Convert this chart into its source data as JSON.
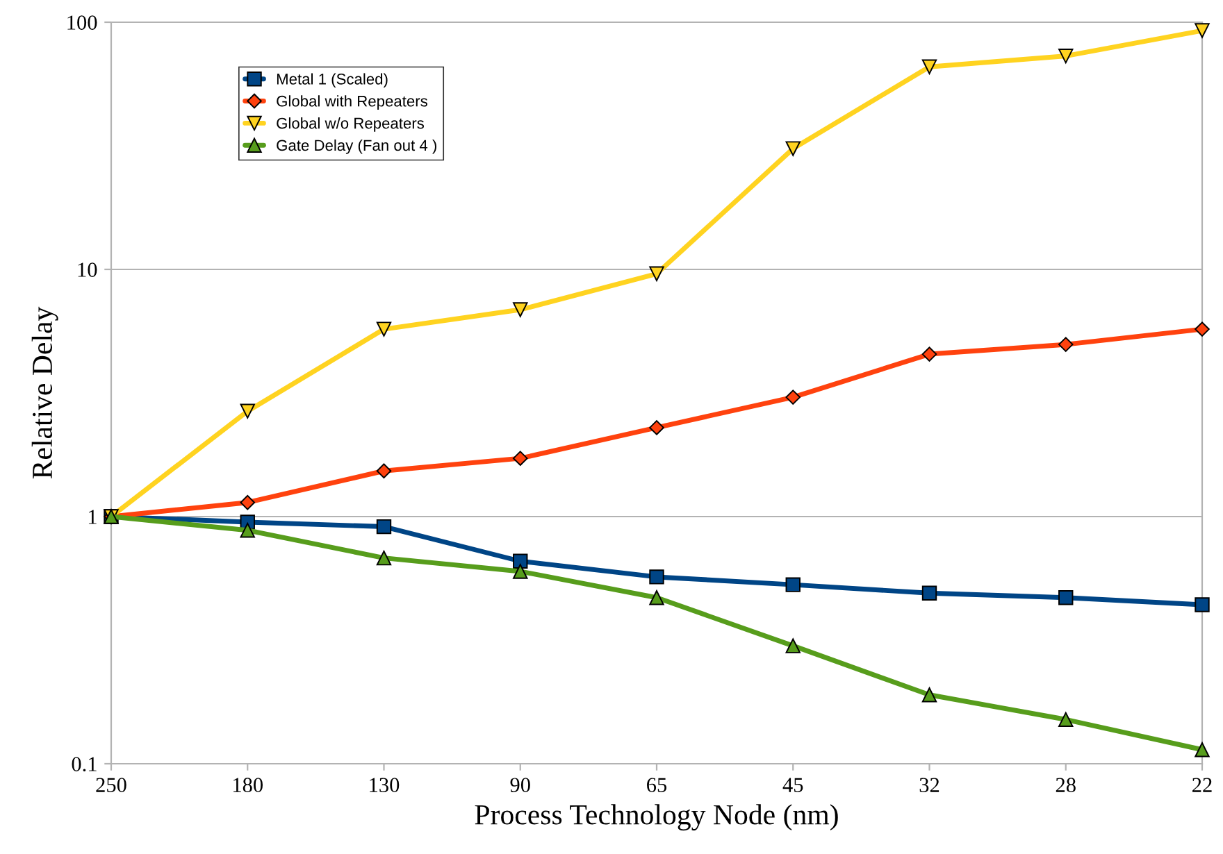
{
  "chart_data": {
    "type": "line",
    "xlabel": "Process Technology Node (nm)",
    "ylabel": "Relative Delay",
    "categories": [
      "250",
      "180",
      "130",
      "90",
      "65",
      "45",
      "32",
      "28",
      "22"
    ],
    "series": [
      {
        "name": "Metal 1 (Scaled)",
        "color": "#004586",
        "marker": "square",
        "values": [
          1,
          0.95,
          0.91,
          0.66,
          0.57,
          0.53,
          0.49,
          0.47,
          0.44
        ]
      },
      {
        "name": "Global with Repeaters",
        "color": "#ff420e",
        "marker": "diamond",
        "values": [
          1,
          1.14,
          1.53,
          1.72,
          2.29,
          3.04,
          4.54,
          4.97,
          5.73
        ]
      },
      {
        "name": "Global w/o Repeaters",
        "color": "#ffd320",
        "marker": "triangle_down",
        "values": [
          1,
          2.67,
          5.73,
          6.87,
          9.6,
          30.8,
          66,
          73,
          92.5
        ]
      },
      {
        "name": "Gate Delay (Fan out 4 )",
        "color": "#579d1c",
        "marker": "triangle",
        "values": [
          1,
          0.88,
          0.68,
          0.6,
          0.47,
          0.3,
          0.19,
          0.151,
          0.114
        ]
      }
    ],
    "log": "y",
    "ylim": [
      0.1,
      100
    ],
    "yticks": [
      0.1,
      1,
      10,
      100
    ],
    "grid": "y",
    "legend": "top left",
    "line_style": "solid"
  }
}
